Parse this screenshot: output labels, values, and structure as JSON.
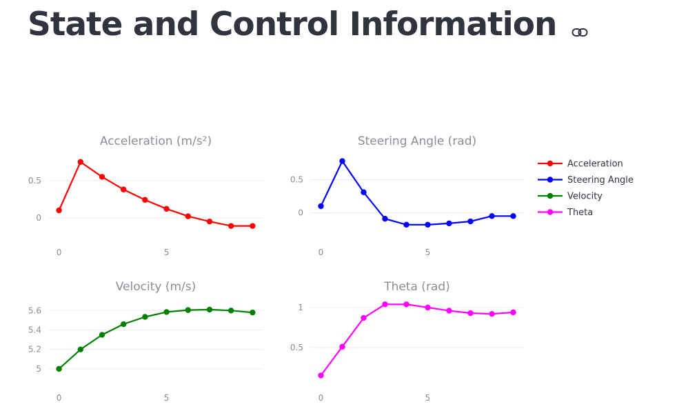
{
  "page": {
    "title": "State and Control Information",
    "link_icon": "link-icon"
  },
  "chart_data": [
    {
      "type": "line",
      "title": "Acceleration (m/s²)",
      "series_name": "Acceleration",
      "color": "#ff0000",
      "x": [
        0,
        1,
        2,
        3,
        4,
        5,
        6,
        7,
        8,
        9
      ],
      "values": [
        0.1,
        0.75,
        0.55,
        0.38,
        0.24,
        0.12,
        0.02,
        -0.05,
        -0.11,
        -0.11
      ],
      "xlim": [
        -0.5,
        9.5
      ],
      "ylim": [
        -0.28,
        0.85
      ],
      "xticks": [
        0,
        5
      ],
      "yticks": [
        0,
        0.5
      ],
      "xlabel": "",
      "ylabel": "",
      "grid": true
    },
    {
      "type": "line",
      "title": "Steering Angle (rad)",
      "series_name": "Steering Angle",
      "color": "#0000ff",
      "x": [
        0,
        1,
        2,
        3,
        4,
        5,
        6,
        7,
        8,
        9
      ],
      "values": [
        0.1,
        0.78,
        0.31,
        -0.09,
        -0.18,
        -0.18,
        -0.16,
        -0.13,
        -0.05,
        -0.05
      ],
      "xlim": [
        -0.5,
        9.5
      ],
      "ylim": [
        -0.39,
        0.88
      ],
      "xticks": [
        0,
        5
      ],
      "yticks": [
        0,
        0.5
      ],
      "xlabel": "",
      "ylabel": "",
      "grid": true
    },
    {
      "type": "line",
      "title": "Velocity (m/s)",
      "series_name": "Velocity",
      "color": "#008000",
      "x": [
        0,
        1,
        2,
        3,
        4,
        5,
        6,
        7,
        8,
        9
      ],
      "values": [
        5.0,
        5.2,
        5.35,
        5.46,
        5.535,
        5.585,
        5.605,
        5.61,
        5.6,
        5.58
      ],
      "xlim": [
        -0.5,
        9.5
      ],
      "ylim": [
        4.85,
        5.73
      ],
      "xticks": [
        0,
        5
      ],
      "yticks": [
        5,
        5.2,
        5.4,
        5.6
      ],
      "xlabel": "",
      "ylabel": "",
      "grid": true
    },
    {
      "type": "line",
      "title": "Theta (rad)",
      "series_name": "Theta",
      "color": "#ff00ff",
      "x": [
        0,
        1,
        2,
        3,
        4,
        5,
        6,
        7,
        8,
        9
      ],
      "values": [
        0.15,
        0.51,
        0.87,
        1.04,
        1.04,
        1.0,
        0.96,
        0.93,
        0.92,
        0.94
      ],
      "xlim": [
        -0.5,
        9.5
      ],
      "ylim": [
        0.05,
        1.12
      ],
      "xticks": [
        0,
        5
      ],
      "yticks": [
        0.5,
        1
      ],
      "xlabel": "",
      "ylabel": "",
      "grid": true
    }
  ],
  "legend": {
    "placement": "top-right",
    "items": [
      "Acceleration",
      "Steering Angle",
      "Velocity",
      "Theta"
    ]
  }
}
